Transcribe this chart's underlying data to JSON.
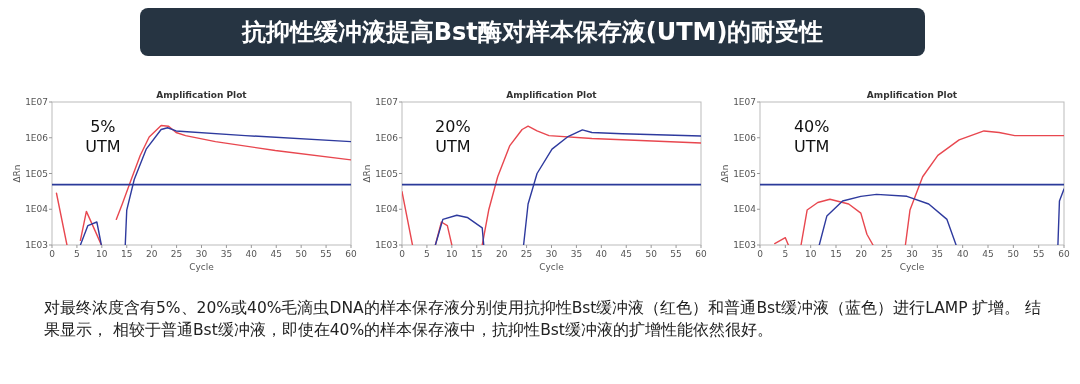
{
  "chart_data": [
    {
      "type": "other",
      "title": "抗抑性缓冲液提高Bst酶对样本保存液(UTM)的耐受性"
    },
    {
      "type": "line",
      "title": "Amplification Plot",
      "xlabel": "Cycle",
      "ylabel": "ΔRn",
      "log": "y",
      "xlim": [
        0,
        60
      ],
      "ylim": [
        1000,
        10000000
      ],
      "xticks": [
        0,
        5,
        10,
        15,
        20,
        25,
        30,
        35,
        40,
        45,
        50,
        55,
        60
      ],
      "yticks": [
        {
          "value": 1000,
          "label": "1E03"
        },
        {
          "value": 10000,
          "label": "1E04"
        },
        {
          "value": 100000,
          "label": "1E05"
        },
        {
          "value": 1000000,
          "label": "1E06"
        },
        {
          "value": 10000000,
          "label": "1E07"
        }
      ],
      "annotations": [
        "5%\nUTM"
      ],
      "ref_lines": [
        {
          "axis": "y",
          "value": 49000,
          "color": "#2b3a9a"
        }
      ],
      "series": [
        {
          "color": "#e8474f",
          "x": [
            0.9,
            3.0,
            null,
            5.7,
            6.9,
            8.7,
            9.9,
            null,
            12.9,
            14.1,
            15.9,
            17.7,
            19.5,
            21.9,
            23.4,
            24.9,
            26.8,
            32.8,
            44.8,
            60
          ],
          "values": [
            28000,
            1000,
            null,
            1350,
            8700,
            2400,
            1000,
            null,
            5200,
            14000,
            68000,
            320000,
            1050000,
            2200000,
            2100000,
            1400000,
            1150000,
            780000,
            440000,
            240000
          ]
        },
        {
          "color": "#2e3a9e",
          "x": [
            5.7,
            7.2,
            9.0,
            9.9,
            null,
            14.7,
            15.0,
            16.5,
            18.9,
            21.9,
            23.2,
            24.9,
            38.8,
            60
          ],
          "values": [
            1000,
            3500,
            4400,
            1000,
            null,
            1000,
            9500,
            68000,
            480000,
            1700000,
            1900000,
            1550000,
            1150000,
            780000
          ]
        }
      ]
    },
    {
      "type": "line",
      "title": "Amplification Plot",
      "xlabel": "Cycle",
      "ylabel": "ΔRn",
      "log": "y",
      "xlim": [
        0,
        60
      ],
      "ylim": [
        1000,
        10000000
      ],
      "xticks": [
        0,
        5,
        10,
        15,
        20,
        25,
        30,
        35,
        40,
        45,
        50,
        55,
        60
      ],
      "yticks": [
        {
          "value": 1000,
          "label": "1E03"
        },
        {
          "value": 10000,
          "label": "1E04"
        },
        {
          "value": 100000,
          "label": "1E05"
        },
        {
          "value": 1000000,
          "label": "1E06"
        },
        {
          "value": 10000000,
          "label": "1E07"
        }
      ],
      "annotations": [
        "20%\nUTM"
      ],
      "ref_lines": [
        {
          "axis": "y",
          "value": 49000,
          "color": "#2b3a9a"
        }
      ],
      "series": [
        {
          "color": "#e8474f",
          "x": [
            0,
            2.1,
            null,
            6.7,
            7.9,
            9.1,
            10,
            null,
            16.1,
            17.4,
            19.2,
            21.6,
            24.1,
            25.3,
            27.1,
            29.5,
            38.1,
            60
          ],
          "values": [
            31000,
            1000,
            null,
            1000,
            4400,
            3500,
            1000,
            null,
            1000,
            9500,
            81000,
            590000,
            1700000,
            2100000,
            1550000,
            1150000,
            950000,
            710000
          ]
        },
        {
          "color": "#2e3a9e",
          "x": [
            6.7,
            8.2,
            11.0,
            13.1,
            16.1,
            16.4,
            null,
            24.4,
            25.3,
            27.1,
            30.1,
            33.2,
            36.2,
            38.1,
            44.2,
            60
          ],
          "values": [
            1000,
            5200,
            6800,
            5900,
            3000,
            1000,
            null,
            1000,
            14000,
            100000,
            480000,
            1050000,
            1660000,
            1400000,
            1300000,
            1120000
          ]
        }
      ]
    },
    {
      "type": "line",
      "title": "Amplification Plot",
      "xlabel": "Cycle",
      "ylabel": "ΔRn",
      "log": "y",
      "xlim": [
        0,
        60
      ],
      "ylim": [
        1000,
        10000000
      ],
      "xticks": [
        0,
        5,
        10,
        15,
        20,
        25,
        30,
        35,
        40,
        45,
        50,
        55,
        60
      ],
      "yticks": [
        {
          "value": 1000,
          "label": "1E03"
        },
        {
          "value": 10000,
          "label": "1E04"
        },
        {
          "value": 100000,
          "label": "1E05"
        },
        {
          "value": 1000000,
          "label": "1E06"
        },
        {
          "value": 10000000,
          "label": "1E07"
        }
      ],
      "annotations": [
        "40%\nUTM"
      ],
      "ref_lines": [
        {
          "axis": "y",
          "value": 49000,
          "color": "#2b3a9a"
        }
      ],
      "series": [
        {
          "color": "#e8474f",
          "x": [
            2.9,
            5.0,
            5.6,
            null,
            8.1,
            9.3,
            11.4,
            13.8,
            17.5,
            19.9,
            21.1,
            22.3,
            null,
            28.7,
            29.6,
            32.1,
            35.1,
            39.3,
            44.2,
            47.2,
            50.3,
            60
          ],
          "values": [
            1100,
            1600,
            1000,
            null,
            1000,
            9500,
            15500,
            19000,
            14000,
            7800,
            2000,
            1000,
            null,
            1000,
            9500,
            81000,
            320000,
            870000,
            1550000,
            1400000,
            1150000,
            1150000
          ]
        },
        {
          "color": "#2e3a9e",
          "x": [
            11.7,
            13.2,
            16.3,
            19.9,
            23.0,
            29.0,
            33.3,
            36.9,
            38.7,
            null,
            58.8,
            59.1,
            60
          ],
          "values": [
            1000,
            6500,
            17000,
            23000,
            26000,
            23000,
            14000,
            5200,
            1000,
            null,
            1000,
            17000,
            37000
          ]
        }
      ]
    },
    {
      "type": "other",
      "annotations": [
        "对最终浓度含有5%、20%或40%毛滴虫DNA的样本保存液分别使用抗抑性Bst缓冲液（红色）和普通Bst缓冲液（蓝色）进行LAMP 扩增。 结果显示， 相较于普通Bst缓冲液，即使在40%的样本保存液中，抗抑性Bst缓冲液的扩增性能依然很好。"
      ]
    }
  ]
}
